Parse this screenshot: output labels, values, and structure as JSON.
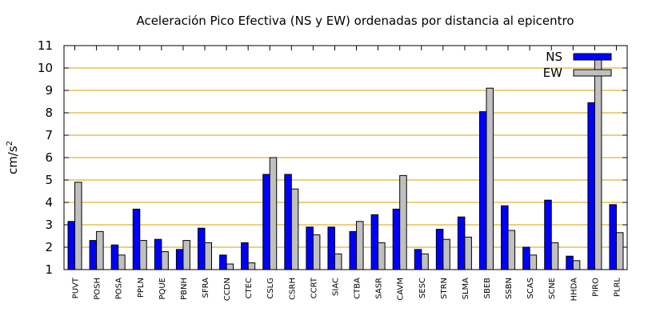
{
  "chart_data": {
    "type": "bar",
    "title": "Aceleración Pico Efectiva (NS y EW) ordenadas por distancia al epicentro",
    "ylabel_base": "cm/s",
    "ylabel_exp": "2",
    "xlabel": "",
    "ylim": [
      1,
      11
    ],
    "yticks": [
      1,
      2,
      3,
      4,
      5,
      6,
      7,
      8,
      9,
      10,
      11
    ],
    "grid": "horizontal",
    "legend_position": "top-right",
    "categories": [
      "PUVT",
      "POSH",
      "POSA",
      "PPLN",
      "PQUE",
      "PBNH",
      "SFRA",
      "CCDN",
      "CTEC",
      "CSLG",
      "CSRH",
      "CCRT",
      "SIAC",
      "CTBA",
      "SASR",
      "CAVM",
      "SESC",
      "STRN",
      "SLMA",
      "SBEB",
      "SSBN",
      "SCAS",
      "SCNE",
      "HHDA",
      "PIRO",
      "PLRL"
    ],
    "series": [
      {
        "name": "NS",
        "color": "#0000ff",
        "values": [
          3.15,
          2.3,
          2.1,
          3.7,
          2.35,
          1.9,
          2.85,
          1.65,
          2.2,
          5.25,
          5.25,
          2.9,
          2.9,
          2.7,
          3.45,
          3.7,
          1.9,
          2.8,
          3.35,
          8.05,
          3.85,
          2.0,
          4.1,
          1.6,
          8.45,
          3.9
        ]
      },
      {
        "name": "EW",
        "color": "#c0c0c0",
        "values": [
          4.9,
          2.7,
          1.65,
          2.3,
          1.8,
          2.3,
          2.2,
          1.25,
          1.3,
          6.0,
          4.6,
          2.55,
          1.7,
          3.15,
          2.2,
          5.2,
          1.7,
          2.35,
          2.45,
          9.1,
          2.75,
          1.65,
          2.2,
          1.4,
          10.45,
          2.65
        ]
      }
    ],
    "gridline_color": "#d4a000"
  }
}
